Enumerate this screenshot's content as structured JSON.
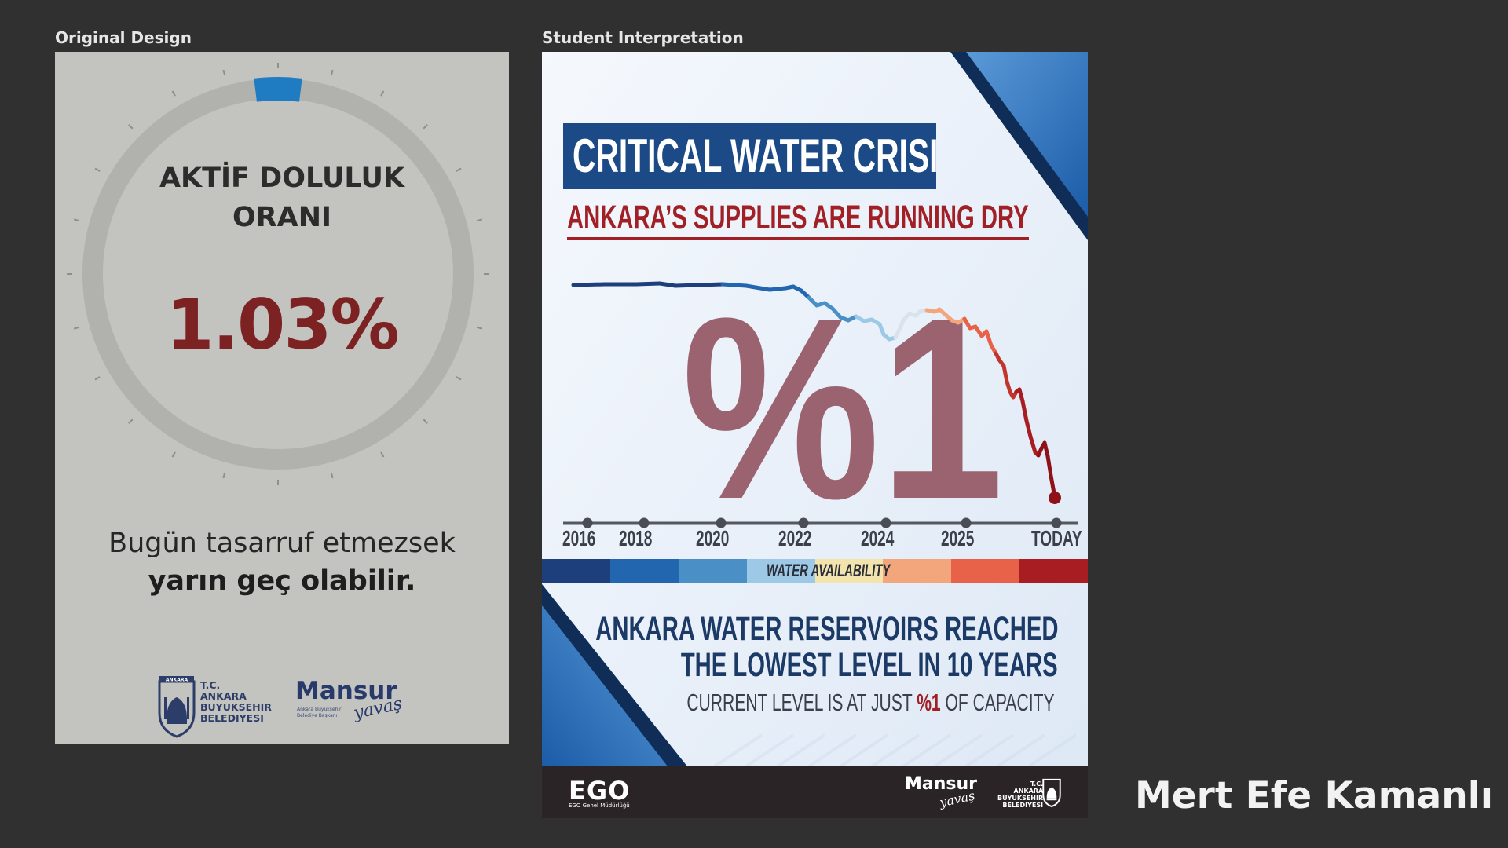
{
  "captions": {
    "left": "Original Design",
    "right": "Student Interpretation"
  },
  "original": {
    "label_line1": "AKTİF DOLULUK",
    "label_line2": "ORANI",
    "percentage": "1.03%",
    "fill_level_percent": 1.03,
    "message_line1": "Bugün tasarruf etmezsek",
    "message_line2": "yarın geç olabilir.",
    "logo_emblem_text": "ANKARA",
    "logo_lines": [
      "T.C.",
      "ANKARA",
      "BUYUKSEHIR",
      "BELEDIYESI"
    ],
    "mansur": "Mansur",
    "mansur_sub": [
      "Ankara Büyükşehir",
      "Belediye Başkanı"
    ],
    "mansur_sig": "yavaş"
  },
  "student": {
    "title": "CRITICAL WATER CRISIS:",
    "subtitle": "ANKARA’S SUPPLIES ARE RUNNING DRY",
    "big_number": "%1",
    "timeline": [
      "2016",
      "2018",
      "2020",
      "2022",
      "2024",
      "2025",
      "TODAY"
    ],
    "water_availability_label": "WATER AVAILABILITY",
    "scale_colors": [
      "#1d3f7c",
      "#2166ae",
      "#4a8fc5",
      "#9ec9e6",
      "#f3e3ac",
      "#f3a67c",
      "#e8624a",
      "#a81d22"
    ],
    "headline_line1": "ANKARA WATER RESERVOIRS REACHED",
    "headline_line2": "THE LOWEST LEVEL IN 10 YEARS",
    "current_prefix": "CURRENT LEVEL IS AT JUST ",
    "current_highlight": "%1",
    "current_suffix": " OF CAPACITY",
    "footer": {
      "ego": "EGO",
      "ego_sub": "EGO Genel Müdürlüğü",
      "mansur": "Mansur",
      "mansur_sig": "yavaş",
      "tc_lines": [
        "T.C.",
        "ANKARA",
        "BUYUKSEHIR",
        "BELEDIYESI"
      ]
    }
  },
  "author": "Mert Efe Kamanlı"
}
